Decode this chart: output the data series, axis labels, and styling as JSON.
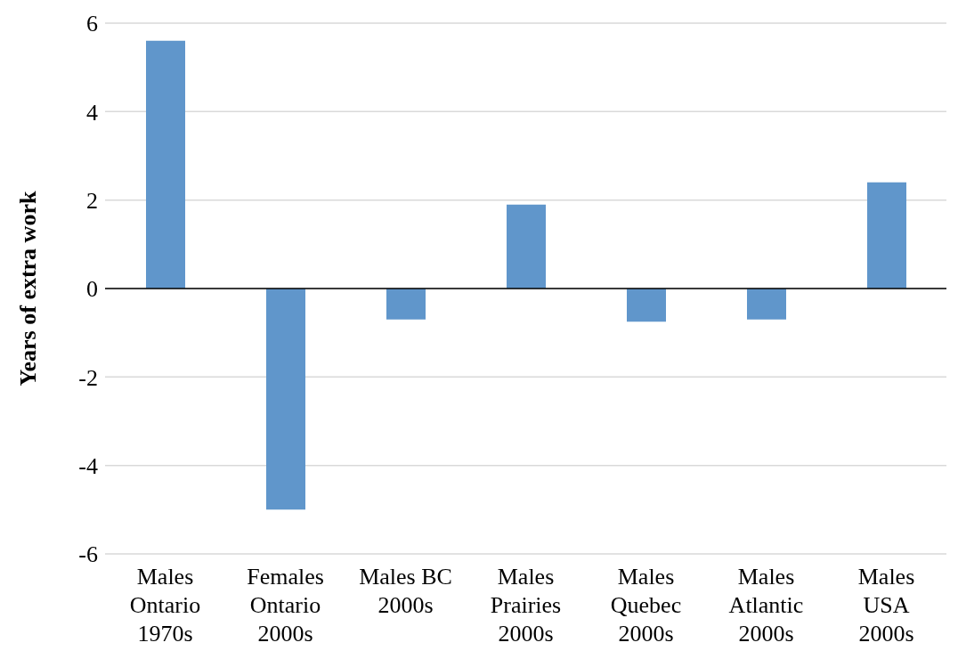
{
  "chart_data": {
    "type": "bar",
    "ylabel": "Years of extra work",
    "categories": [
      "Males Ontario 1970s",
      "Females Ontario 2000s",
      "Males BC 2000s",
      "Males Prairies 2000s",
      "Males Quebec 2000s",
      "Males Atlantic 2000s",
      "Males USA 2000s"
    ],
    "values": [
      5.6,
      -5.0,
      -0.7,
      1.9,
      -0.75,
      -0.7,
      2.4
    ],
    "color": "#6096cb",
    "ylim": [
      -6,
      6
    ],
    "yticks": [
      -6,
      -4,
      -2,
      0,
      2,
      4,
      6
    ],
    "grid": "y"
  }
}
